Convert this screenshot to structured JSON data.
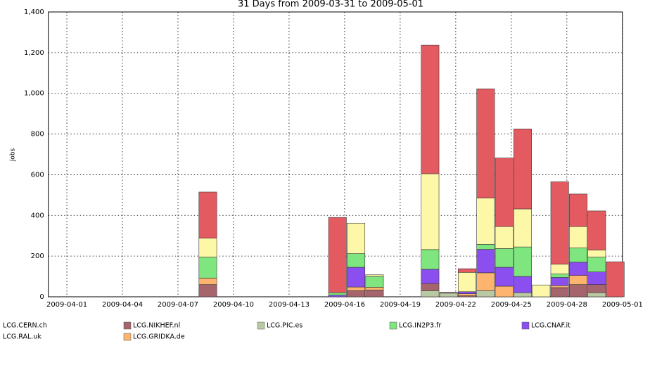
{
  "chart_data": {
    "type": "bar",
    "stacked": true,
    "title": "31 Days from 2009-03-31 to 2009-05-01",
    "y_label": "jobs",
    "xlim": [
      "2009-03-31",
      "2009-05-01"
    ],
    "xticks": [
      "2009-04-01",
      "2009-04-04",
      "2009-04-07",
      "2009-04-10",
      "2009-04-13",
      "2009-04-16",
      "2009-04-19",
      "2009-04-22",
      "2009-04-25",
      "2009-04-28",
      "2009-05-01"
    ],
    "ylim": [
      0,
      1400
    ],
    "yticks": [
      0,
      200,
      400,
      600,
      800,
      {
        "value": 1000,
        "label": "1,000"
      },
      {
        "value": 1200,
        "label": "1,200"
      },
      {
        "value": 1400,
        "label": "1,400"
      }
    ],
    "grid": true,
    "x": [
      "2009-04-08",
      "2009-04-15",
      "2009-04-16",
      "2009-04-17",
      "2009-04-20",
      "2009-04-21",
      "2009-04-22",
      "2009-04-23",
      "2009-04-24",
      "2009-04-25",
      "2009-04-26",
      "2009-04-27",
      "2009-04-28",
      "2009-04-29",
      "2009-04-30"
    ],
    "series": [
      {
        "name": "LCG.PIC.es",
        "color": "#b9c9a3",
        "values": [
          null,
          null,
          null,
          null,
          30,
          18,
          null,
          30,
          null,
          20,
          null,
          null,
          null,
          20,
          null
        ]
      },
      {
        "name": "LCG.NIKHEF.nl",
        "color": "#a6656d",
        "values": [
          60,
          null,
          30,
          33,
          35,
          4,
          5,
          null,
          null,
          null,
          null,
          45,
          60,
          40,
          null
        ]
      },
      {
        "name": "LCG.GRIDKA.de",
        "color": "#fcb46e",
        "values": [
          32,
          null,
          18,
          14,
          null,
          null,
          10,
          88,
          52,
          null,
          null,
          10,
          45,
          null,
          null
        ]
      },
      {
        "name": "LCG.CNAF.it",
        "color": "#8b4ff0",
        "values": [
          null,
          8,
          97,
          null,
          70,
          null,
          10,
          115,
          93,
          80,
          null,
          40,
          65,
          62,
          null
        ]
      },
      {
        "name": "LCG.IN2P3.fr",
        "color": "#7fe57f",
        "values": [
          103,
          12,
          67,
          53,
          97,
          null,
          null,
          25,
          92,
          145,
          null,
          17,
          70,
          73,
          null
        ]
      },
      {
        "name": "LCG.RAL.uk",
        "color": "#fdf7a8",
        "values": [
          93,
          null,
          150,
          8,
          373,
          null,
          95,
          227,
          108,
          187,
          58,
          48,
          105,
          35,
          null
        ]
      },
      {
        "name": "LCG.CERN.ch",
        "color": "#e35b61",
        "values": [
          227,
          370,
          null,
          null,
          632,
          null,
          18,
          537,
          337,
          393,
          null,
          405,
          160,
          192,
          172
        ]
      }
    ],
    "legend_order": [
      6,
      5,
      1,
      0,
      4,
      3,
      2
    ]
  }
}
